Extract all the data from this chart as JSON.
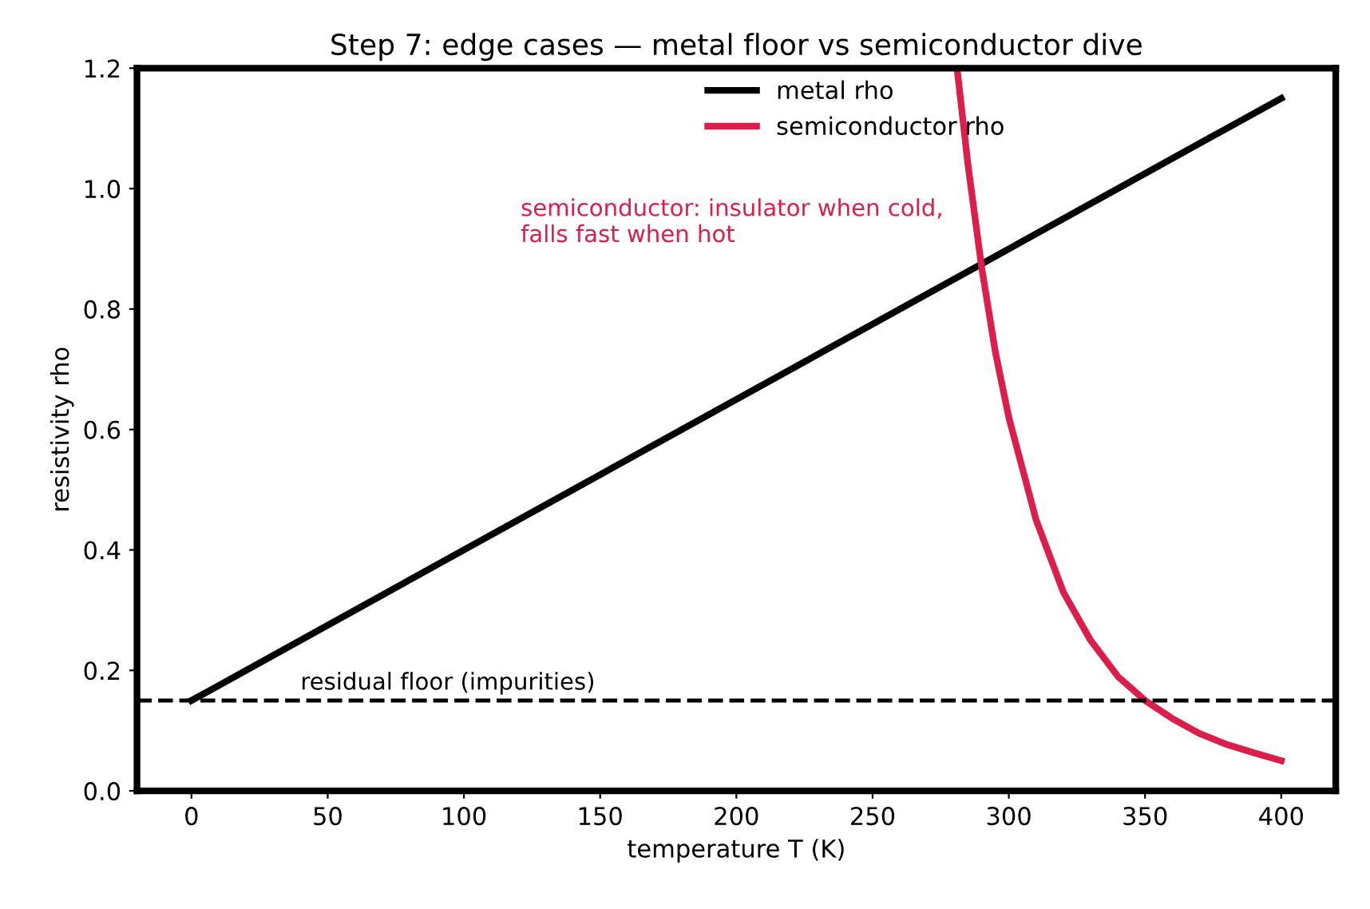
{
  "chart_data": {
    "type": "line",
    "title": "Step 7: edge cases — metal floor vs semiconductor dive",
    "xlabel": "temperature T (K)",
    "ylabel": "resistivity rho",
    "series": [
      {
        "name": "metal rho",
        "color": "#000000",
        "x": [
          0,
          400
        ],
        "values": [
          0.15,
          1.15
        ]
      },
      {
        "name": "semiconductor rho",
        "color": "#dc1e4b",
        "x": [
          281,
          285,
          290,
          295,
          300,
          310,
          320,
          330,
          340,
          350,
          360,
          370,
          380,
          390,
          400
        ],
        "values": [
          1.2,
          1.04,
          0.87,
          0.73,
          0.62,
          0.45,
          0.33,
          0.25,
          0.19,
          0.15,
          0.12,
          0.095,
          0.077,
          0.063,
          0.05
        ]
      }
    ],
    "xlim": [
      -20,
      420
    ],
    "xticks": [
      0,
      50,
      100,
      150,
      200,
      250,
      300,
      350,
      400
    ],
    "ylim": [
      0,
      1.2
    ],
    "yticks": [
      {
        "value": 0,
        "label": "0.0"
      },
      0.2,
      0.4,
      0.6,
      0.8,
      {
        "value": 1,
        "label": "1.0"
      },
      1.2
    ],
    "ref_lines": [
      {
        "axis": "y",
        "value": 0.15,
        "label": null,
        "color": "#000000",
        "line_style": "dashed"
      }
    ],
    "annotations": [
      {
        "text": "residual floor (impurities)",
        "x": 40,
        "y": 0.16
      },
      "semiconductor: insulator when cold,\nfalls fast when hot"
    ],
    "grid": false,
    "legend": "top",
    "marker": "none",
    "line_style": "solid"
  }
}
